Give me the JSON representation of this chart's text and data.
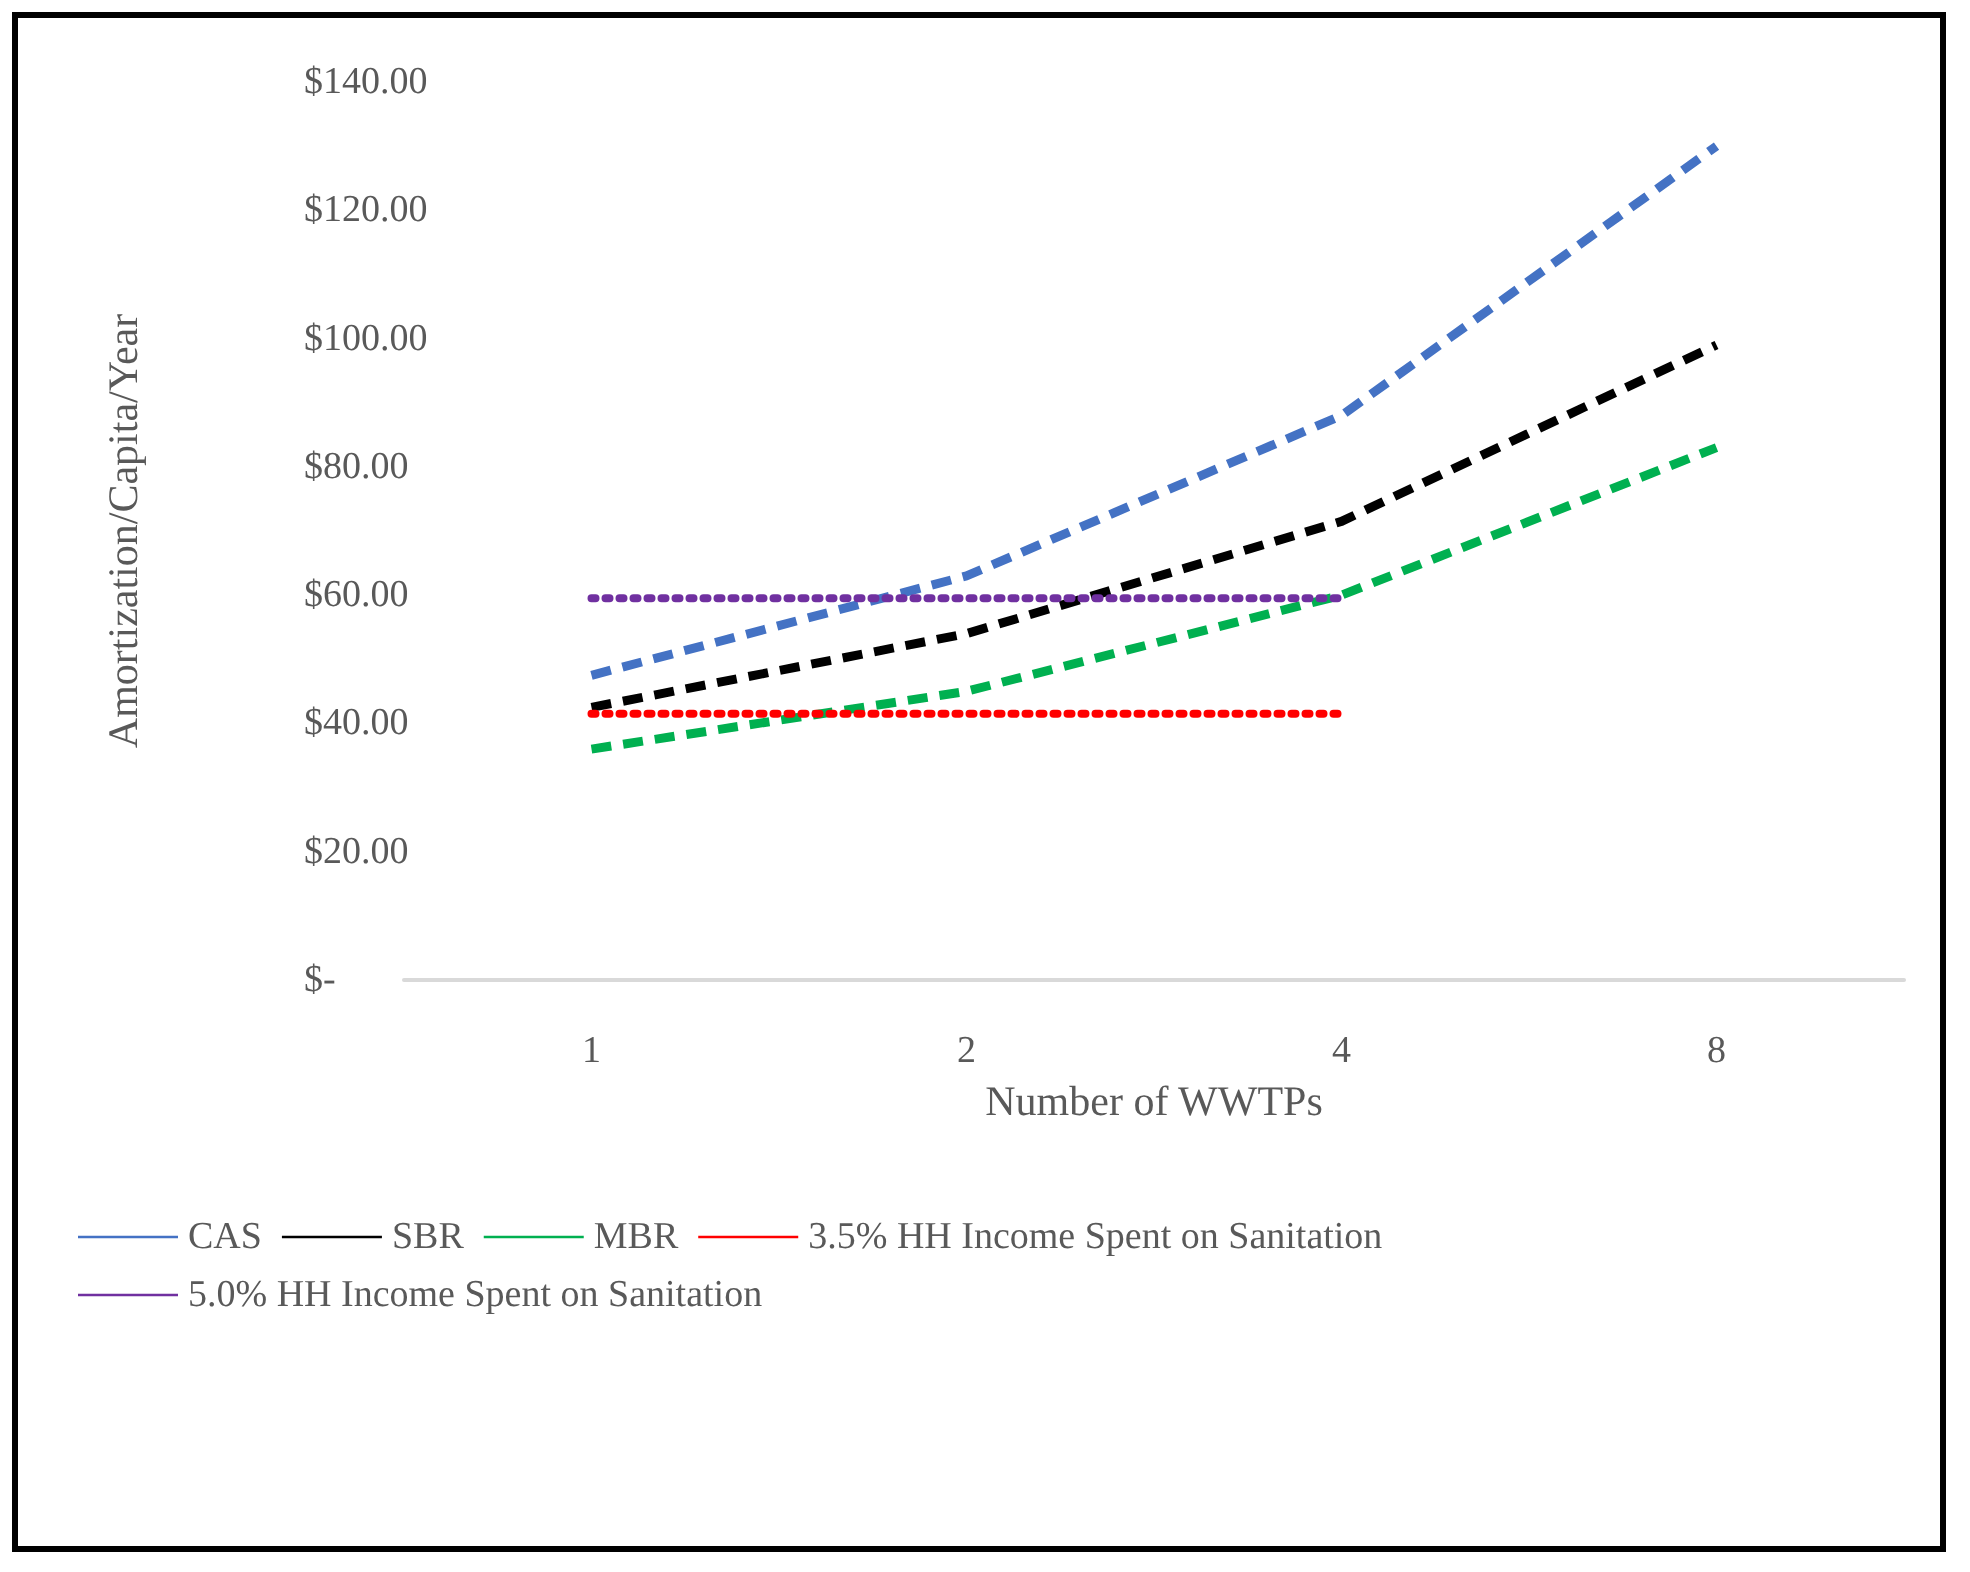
{
  "chart_data": {
    "type": "line",
    "xlabel": "Number of WWTPs",
    "ylabel": "Amortization/Capita/Year",
    "categories": [
      "1",
      "2",
      "4",
      "8"
    ],
    "series": [
      {
        "name": "CAS",
        "color": "#4472c4",
        "line_style": "dashed",
        "values": [
          47.5,
          63,
          88,
          130
        ]
      },
      {
        "name": "SBR",
        "color": "#000000",
        "line_style": "dashed",
        "values": [
          42.5,
          54,
          71.5,
          99
        ]
      },
      {
        "name": "MBR",
        "color": "#00b050",
        "line_style": "dashed",
        "values": [
          36,
          45,
          60,
          83
        ]
      },
      {
        "name": "3.5% HH Income Spent on Sanitation",
        "color": "#ff0000",
        "line_style": "dotted",
        "values": [
          41.5,
          41.5,
          41.5,
          null
        ]
      },
      {
        "name": "5.0% HH Income Spent on Sanitation",
        "color": "#7030a0",
        "line_style": "dotted",
        "values": [
          59.5,
          59.5,
          59.5,
          null
        ]
      }
    ],
    "ylim": [
      0,
      140
    ],
    "yticks": [
      {
        "value": 0,
        "label": "$-"
      },
      {
        "value": 20,
        "label": "$20.00"
      },
      {
        "value": 40,
        "label": "$40.00"
      },
      {
        "value": 60,
        "label": "$60.00"
      },
      {
        "value": 80,
        "label": "$80.00"
      },
      {
        "value": 100,
        "label": "$100.00"
      },
      {
        "value": 120,
        "label": "$120.00"
      },
      {
        "value": 140,
        "label": "$140.00"
      }
    ],
    "grid": false,
    "legend": "bottom",
    "marker": "none"
  }
}
